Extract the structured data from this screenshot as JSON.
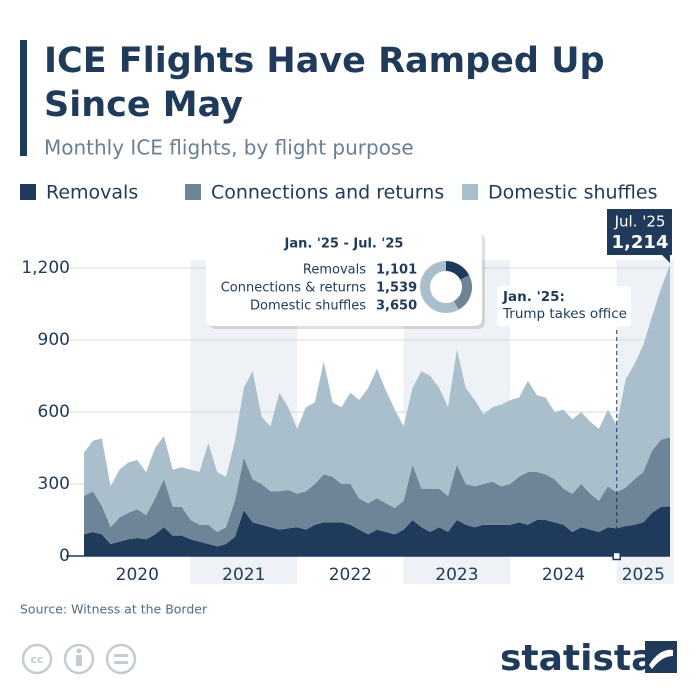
{
  "chart_data": {
    "type": "stacked-area",
    "title": "ICE Flights Have Ramped Up Since May",
    "subtitle": "Monthly ICE flights, by flight purpose",
    "x": [
      2020,
      2020.083,
      2020.167,
      2020.25,
      2020.333,
      2020.417,
      2020.5,
      2020.583,
      2020.667,
      2020.75,
      2020.833,
      2020.917,
      2021,
      2021.083,
      2021.167,
      2021.25,
      2021.333,
      2021.417,
      2021.5,
      2021.583,
      2021.667,
      2021.75,
      2021.833,
      2021.917,
      2022,
      2022.083,
      2022.167,
      2022.25,
      2022.333,
      2022.417,
      2022.5,
      2022.583,
      2022.667,
      2022.75,
      2022.833,
      2022.917,
      2023,
      2023.083,
      2023.167,
      2023.25,
      2023.333,
      2023.417,
      2023.5,
      2023.583,
      2023.667,
      2023.75,
      2023.833,
      2023.917,
      2024,
      2024.083,
      2024.167,
      2024.25,
      2024.333,
      2024.417,
      2024.5,
      2024.583,
      2024.667,
      2024.75,
      2024.833,
      2024.917,
      2025,
      2025.083,
      2025.167,
      2025.25,
      2025.333,
      2025.417,
      2025.5
    ],
    "series": [
      {
        "name": "Removals",
        "color": "#1f3a5a",
        "values": [
          90,
          100,
          90,
          50,
          60,
          70,
          75,
          70,
          90,
          120,
          85,
          85,
          70,
          60,
          50,
          40,
          50,
          80,
          190,
          140,
          130,
          120,
          110,
          115,
          120,
          110,
          130,
          140,
          140,
          140,
          130,
          110,
          90,
          110,
          100,
          90,
          110,
          150,
          120,
          100,
          120,
          100,
          150,
          130,
          120,
          130,
          130,
          130,
          130,
          140,
          130,
          150,
          150,
          140,
          130,
          100,
          120,
          110,
          100,
          120,
          115,
          125,
          130,
          140,
          180,
          205,
          206
        ]
      },
      {
        "name": "Connections and returns",
        "color": "#6d8597",
        "values": [
          160,
          170,
          120,
          70,
          100,
          110,
          120,
          100,
          150,
          200,
          120,
          120,
          80,
          70,
          80,
          60,
          70,
          150,
          220,
          180,
          170,
          150,
          160,
          160,
          140,
          160,
          170,
          200,
          190,
          160,
          170,
          130,
          130,
          130,
          120,
          110,
          120,
          230,
          160,
          180,
          160,
          150,
          230,
          170,
          170,
          170,
          180,
          160,
          170,
          190,
          220,
          200,
          190,
          180,
          150,
          160,
          180,
          150,
          130,
          170,
          150,
          160,
          190,
          210,
          260,
          280,
          289
        ]
      },
      {
        "name": "Domestic shuffles",
        "color": "#a9bfcb",
        "values": [
          180,
          210,
          280,
          170,
          200,
          210,
          205,
          180,
          210,
          180,
          155,
          165,
          210,
          220,
          340,
          250,
          210,
          250,
          290,
          450,
          280,
          270,
          410,
          345,
          270,
          350,
          340,
          470,
          310,
          320,
          380,
          410,
          480,
          540,
          470,
          410,
          310,
          320,
          490,
          470,
          420,
          370,
          480,
          400,
          360,
          290,
          310,
          340,
          350,
          330,
          380,
          320,
          320,
          280,
          330,
          310,
          300,
          300,
          300,
          320,
          280,
          450,
          480,
          530,
          560,
          631,
          719
        ]
      }
    ],
    "xlim": [
      2020,
      2025.5
    ],
    "xticks": [
      {
        "value": 2020.5,
        "label": "2020"
      },
      {
        "value": 2021.5,
        "label": "2021"
      },
      {
        "value": 2022.5,
        "label": "2022"
      },
      {
        "value": 2023.5,
        "label": "2023"
      },
      {
        "value": 2024.5,
        "label": "2024"
      },
      {
        "value": 2025.25,
        "label": "2025"
      }
    ],
    "ylim": [
      0,
      1200
    ],
    "yticks": [
      0,
      300,
      600,
      900,
      {
        "value": 1200,
        "label": "1,200"
      }
    ],
    "grid": true,
    "summary": {
      "title": "Jan. '25 - Jul. '25",
      "rows": [
        {
          "name": "Removals",
          "value": 1101,
          "value_label": "1,101"
        },
        {
          "name": "Connections & returns",
          "value": 1539,
          "value_label": "1,539"
        },
        {
          "name": "Domestic shuffles",
          "value": 3650,
          "value_label": "3,650"
        }
      ]
    },
    "event": {
      "x": 2025,
      "label": "Jan. '25:",
      "text": "Trump takes office"
    },
    "callout": {
      "label": "Jul. '25",
      "value": 1214,
      "value_label": "1,214"
    },
    "source": "Source: Witness at the Border",
    "brand": "statista"
  }
}
